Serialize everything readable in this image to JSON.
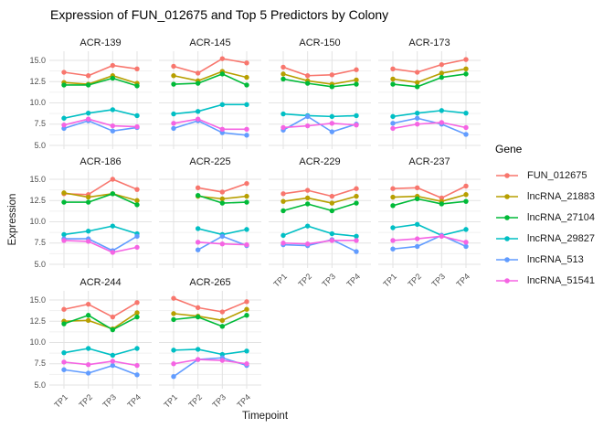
{
  "chart_data": {
    "type": "line",
    "title": "Expression of FUN_012675 and Top 5 Predictors by Colony",
    "xlabel": "Timepoint",
    "ylabel": "Expression",
    "legend_title": "Gene",
    "legend_position": "right",
    "grid": true,
    "x": [
      "TP1",
      "TP2",
      "TP3",
      "TP4"
    ],
    "ylim": [
      4.5,
      15.6
    ],
    "yticks": [
      15.0,
      12.5,
      10.0,
      7.5,
      5.0
    ],
    "ytick_labels": [
      "15.0",
      "12.5",
      "10.0",
      "7.5",
      "5.0"
    ],
    "series": [
      {
        "name": "FUN_012675",
        "color": "#F8766D"
      },
      {
        "name": "lncRNA_21883",
        "color": "#B79F00"
      },
      {
        "name": "lncRNA_27104",
        "color": "#00BA38"
      },
      {
        "name": "lncRNA_29827",
        "color": "#00BFC4"
      },
      {
        "name": "lncRNA_513",
        "color": "#619CFF"
      },
      {
        "name": "lncRNA_51541",
        "color": "#F564E3"
      }
    ],
    "facets": [
      {
        "name": "ACR-139",
        "row": 0,
        "col": 0,
        "show_x": false,
        "show_y": true,
        "values": [
          [
            13.6,
            13.2,
            14.4,
            14.0
          ],
          [
            12.4,
            12.2,
            13.2,
            12.3
          ],
          [
            12.1,
            12.1,
            12.9,
            12.0
          ],
          [
            8.2,
            8.8,
            9.2,
            8.5
          ],
          [
            7.0,
            7.9,
            6.7,
            7.1
          ],
          [
            7.4,
            8.1,
            7.3,
            7.2
          ]
        ]
      },
      {
        "name": "ACR-145",
        "row": 0,
        "col": 1,
        "show_x": false,
        "show_y": false,
        "values": [
          [
            14.3,
            13.5,
            15.2,
            14.7
          ],
          [
            13.2,
            12.6,
            13.7,
            13.0
          ],
          [
            12.2,
            12.3,
            13.4,
            12.1
          ],
          [
            8.7,
            9.0,
            9.8,
            9.8
          ],
          [
            7.0,
            7.9,
            6.5,
            6.2
          ],
          [
            7.6,
            8.1,
            6.9,
            6.9
          ]
        ]
      },
      {
        "name": "ACR-150",
        "row": 0,
        "col": 2,
        "show_x": false,
        "show_y": false,
        "values": [
          [
            14.2,
            13.2,
            13.3,
            13.9
          ],
          [
            13.4,
            12.6,
            12.2,
            12.7
          ],
          [
            12.8,
            12.3,
            11.9,
            12.2
          ],
          [
            8.7,
            8.5,
            8.4,
            8.5
          ],
          [
            6.8,
            8.4,
            6.6,
            7.5
          ],
          [
            7.1,
            7.3,
            7.6,
            7.4
          ]
        ]
      },
      {
        "name": "ACR-173",
        "row": 0,
        "col": 3,
        "show_x": false,
        "show_y": false,
        "values": [
          [
            14.0,
            13.6,
            14.5,
            15.1
          ],
          [
            12.8,
            12.4,
            13.5,
            14.0
          ],
          [
            12.2,
            11.9,
            13.0,
            13.4
          ],
          [
            8.4,
            8.8,
            9.1,
            8.8
          ],
          [
            7.6,
            8.2,
            7.5,
            6.3
          ],
          [
            7.0,
            7.5,
            7.7,
            7.1
          ]
        ]
      },
      {
        "name": "ACR-186",
        "row": 1,
        "col": 0,
        "show_x": false,
        "show_y": true,
        "values": [
          [
            13.3,
            13.2,
            15.0,
            13.8
          ],
          [
            13.4,
            12.9,
            13.3,
            12.5
          ],
          [
            12.3,
            12.3,
            13.3,
            12.0
          ],
          [
            8.5,
            8.9,
            9.5,
            8.6
          ],
          [
            8.0,
            8.0,
            6.6,
            8.3
          ],
          [
            7.8,
            7.7,
            6.4,
            7.0
          ]
        ]
      },
      {
        "name": "ACR-225",
        "row": 1,
        "col": 1,
        "show_x": false,
        "show_y": false,
        "values": [
          [
            null,
            14.0,
            13.5,
            14.5
          ],
          [
            null,
            13.0,
            12.7,
            13.0
          ],
          [
            null,
            13.1,
            12.2,
            12.3
          ],
          [
            null,
            9.2,
            8.5,
            9.1
          ],
          [
            null,
            6.7,
            8.3,
            7.2
          ],
          [
            null,
            7.6,
            7.4,
            7.3
          ]
        ]
      },
      {
        "name": "ACR-229",
        "row": 1,
        "col": 2,
        "show_x": true,
        "show_y": false,
        "values": [
          [
            13.3,
            13.7,
            13.0,
            13.9
          ],
          [
            12.4,
            12.8,
            12.2,
            13.0
          ],
          [
            11.3,
            12.1,
            11.3,
            12.2
          ],
          [
            8.4,
            9.5,
            8.6,
            8.3
          ],
          [
            7.3,
            7.2,
            7.9,
            6.5
          ],
          [
            7.5,
            7.4,
            7.8,
            7.8
          ]
        ]
      },
      {
        "name": "ACR-237",
        "row": 1,
        "col": 3,
        "show_x": true,
        "show_y": false,
        "values": [
          [
            13.9,
            14.0,
            12.8,
            14.2
          ],
          [
            12.9,
            13.0,
            12.4,
            13.2
          ],
          [
            11.9,
            12.7,
            12.1,
            12.4
          ],
          [
            9.3,
            9.7,
            8.4,
            9.1
          ],
          [
            6.8,
            7.1,
            8.4,
            7.1
          ],
          [
            7.8,
            8.0,
            8.3,
            7.6
          ]
        ]
      },
      {
        "name": "ACR-244",
        "row": 2,
        "col": 0,
        "show_x": true,
        "show_y": true,
        "values": [
          [
            13.9,
            14.5,
            13.0,
            14.7
          ],
          [
            12.5,
            12.6,
            11.6,
            13.5
          ],
          [
            12.2,
            13.2,
            11.5,
            13.0
          ],
          [
            8.8,
            9.3,
            8.5,
            9.3
          ],
          [
            6.8,
            6.4,
            7.3,
            6.2
          ],
          [
            7.7,
            7.4,
            7.8,
            7.3
          ]
        ]
      },
      {
        "name": "ACR-265",
        "row": 2,
        "col": 1,
        "show_x": true,
        "show_y": false,
        "values": [
          [
            15.2,
            14.1,
            13.6,
            14.8
          ],
          [
            13.4,
            13.1,
            12.6,
            13.9
          ],
          [
            12.7,
            13.0,
            11.9,
            13.2
          ],
          [
            9.1,
            9.2,
            8.6,
            9.0
          ],
          [
            6.0,
            8.0,
            8.2,
            7.3
          ],
          [
            7.5,
            8.0,
            7.9,
            7.5
          ]
        ]
      }
    ],
    "style": {
      "grid_major_color": "#E3E3E3",
      "grid_minor_color": "#F1F1F1",
      "tick_text_color": "#4d4d4d",
      "background": "#ffffff"
    }
  }
}
